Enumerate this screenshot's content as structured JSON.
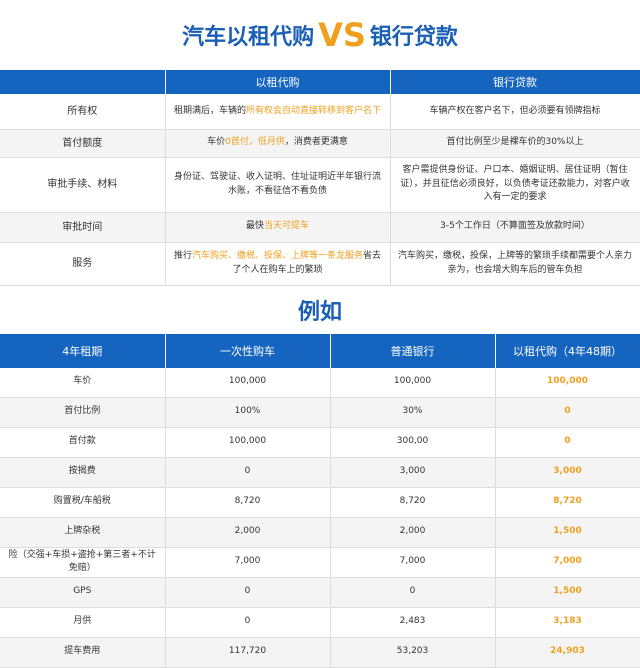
{
  "title": {
    "left": "汽车以租代购",
    "vs": "VS",
    "right": "银行贷款"
  },
  "table1": {
    "header": [
      "以租代购",
      "银行贷款"
    ],
    "rows": [
      [
        [
          {
            "text": "所有权"
          }
        ],
        [
          {
            "text": "租期满后，车辆的"
          },
          {
            "text": "所有权会自动直接转移到客户名下",
            "color": "#f0a01e"
          }
        ],
        [
          {
            "text": "车辆产权在客户名下，但必须要有领牌指标"
          }
        ]
      ],
      [
        [
          {
            "text": "首付额度"
          }
        ],
        [
          {
            "text": "车价"
          },
          {
            "text": "0首付，低月供",
            "color": "#f0a01e"
          },
          {
            "text": "，消费者更满意"
          }
        ],
        [
          {
            "text": "首付比例至少是裸车价的30%以上"
          }
        ]
      ],
      [
        [
          {
            "text": "审批手续、材料"
          }
        ],
        [
          {
            "text": "身份证、驾驶证、收入证明、住址证明近半年银行流水账，不看征信不看负债"
          }
        ],
        [
          {
            "text": "客户需提供身份证、户口本、婚姻证明、居住证明（暂住证），并且征信必须良好，以负债考证还款能力，对客户收入有一定的要求"
          }
        ]
      ],
      [
        [
          {
            "text": "审批时间"
          }
        ],
        [
          {
            "text": "最快"
          },
          {
            "text": "当天可提车",
            "color": "#f0a01e"
          }
        ],
        [
          {
            "text": "3-5个工作日（不算面签及放款时间）"
          }
        ]
      ],
      [
        [
          {
            "text": "服务"
          }
        ],
        [
          {
            "text": "推行"
          },
          {
            "text": "汽车购买、缴税、投保、上牌等一条龙服务",
            "color": "#f0a01e"
          },
          {
            "text": "省去了个人在购车上的繁琐"
          }
        ],
        [
          {
            "text": "汽车购买，缴税，投保，上牌等的繁琐手续都需要个人亲力亲为，也会增大购车后的管车负担"
          }
        ]
      ]
    ]
  },
  "example_heading": "例如",
  "table2": {
    "header": [
      "4年租期",
      "一次性购车",
      "普通银行",
      "以租代购（4年48期）"
    ],
    "highlight_color": "#f0a01e",
    "rows": [
      [
        "车价",
        "100,000",
        "100,000",
        "100,000"
      ],
      [
        "首付比例",
        "100%",
        "30%",
        "0"
      ],
      [
        "首付款",
        "100,000",
        "300,00",
        "0"
      ],
      [
        "按揭费",
        "0",
        "3,000",
        "3,000"
      ],
      [
        "购置税/车船税",
        "8,720",
        "8,720",
        "8,720"
      ],
      [
        "上牌杂税",
        "2,000",
        "2,000",
        "1,500"
      ],
      [
        "险（交强+车损+盗抢+第三者+不计免赔）",
        "7,000",
        "7,000",
        "7,000"
      ],
      [
        "GPS",
        "0",
        "0",
        "1,500"
      ],
      [
        "月供",
        "0",
        "2,483",
        "3,183"
      ],
      [
        "提车费用",
        "117,720",
        "53,203",
        "24,903"
      ]
    ]
  }
}
